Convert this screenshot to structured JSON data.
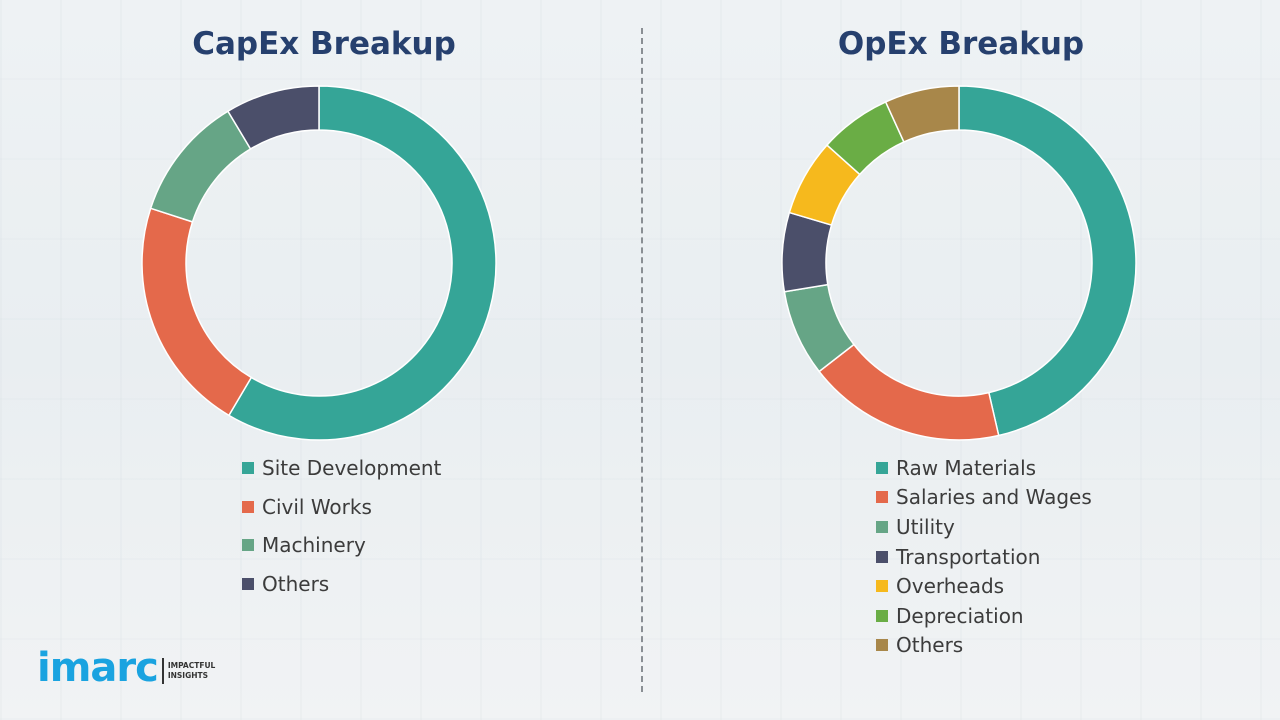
{
  "chart_data": [
    {
      "type": "pie",
      "title": "CapEx Breakup",
      "donut": true,
      "legend": "bottom",
      "categories": [
        "Site Development",
        "Civil Works",
        "Machinery",
        "Others"
      ],
      "values": [
        58.5,
        21.5,
        11.4,
        8.6
      ],
      "colors": [
        "#35a597",
        "#e4694b",
        "#66a586",
        "#4b4f6a"
      ]
    },
    {
      "type": "pie",
      "title": "OpEx Breakup",
      "donut": true,
      "legend": "bottom",
      "categories": [
        "Raw Materials",
        "Salaries and Wages",
        "Utility",
        "Transportation",
        "Overheads",
        "Depreciation",
        "Others"
      ],
      "values": [
        46.4,
        18.1,
        7.9,
        7.2,
        7.0,
        6.6,
        6.8
      ],
      "colors": [
        "#35a597",
        "#e4694b",
        "#66a586",
        "#4b4f6a",
        "#f6b91d",
        "#6aad45",
        "#a8874a"
      ]
    }
  ],
  "logo": {
    "word": "imarc",
    "tagline1": "IMPACTFUL",
    "tagline2": "INSIGHTS",
    "color": "#1aa3e0"
  }
}
